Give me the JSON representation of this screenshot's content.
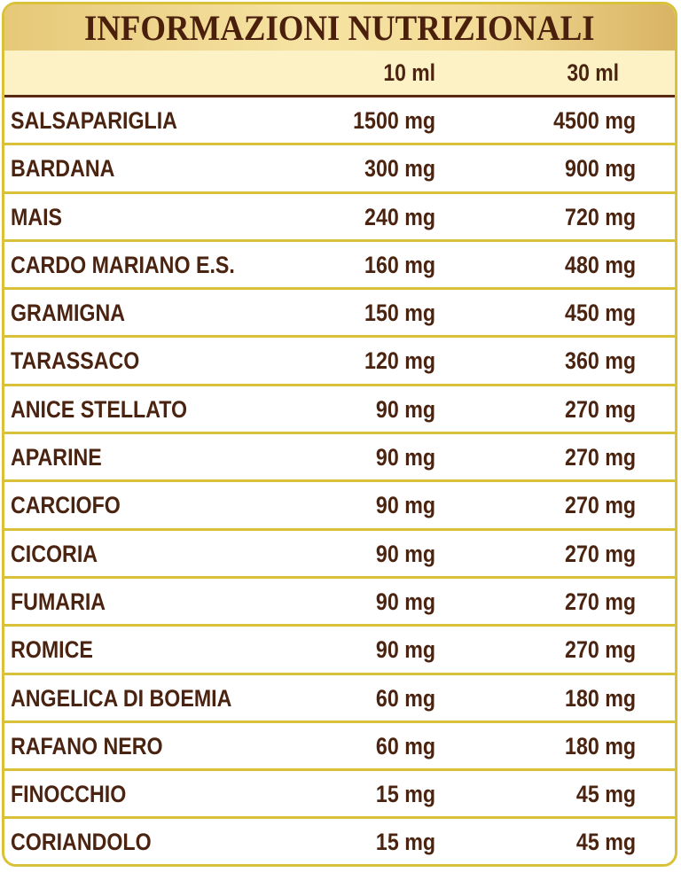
{
  "title": "INFORMAZIONI NUTRIZIONALI",
  "columns": [
    "10 ml",
    "30 ml"
  ],
  "rows": [
    {
      "name": "SALSAPARIGLIA",
      "v10": "1500 mg",
      "v30": "4500 mg"
    },
    {
      "name": "BARDANA",
      "v10": "300 mg",
      "v30": "900 mg"
    },
    {
      "name": "MAIS",
      "v10": "240 mg",
      "v30": "720 mg"
    },
    {
      "name": "CARDO MARIANO E.S.",
      "v10": "160 mg",
      "v30": "480 mg"
    },
    {
      "name": "GRAMIGNA",
      "v10": "150 mg",
      "v30": "450 mg"
    },
    {
      "name": "TARASSACO",
      "v10": "120 mg",
      "v30": "360 mg"
    },
    {
      "name": "ANICE STELLATO",
      "v10": "90 mg",
      "v30": "270 mg"
    },
    {
      "name": "APARINE",
      "v10": "90 mg",
      "v30": "270 mg"
    },
    {
      "name": "CARCIOFO",
      "v10": "90 mg",
      "v30": "270 mg"
    },
    {
      "name": "CICORIA",
      "v10": "90 mg",
      "v30": "270 mg"
    },
    {
      "name": "FUMARIA",
      "v10": "90 mg",
      "v30": "270 mg"
    },
    {
      "name": "ROMICE",
      "v10": "90 mg",
      "v30": "270 mg"
    },
    {
      "name": "ANGELICA DI BOEMIA",
      "v10": "60 mg",
      "v30": "180 mg"
    },
    {
      "name": "RAFANO NERO",
      "v10": "60 mg",
      "v30": "180 mg"
    },
    {
      "name": "FINOCCHIO",
      "v10": "15 mg",
      "v30": "45 mg"
    },
    {
      "name": "CORIANDOLO",
      "v10": "15 mg",
      "v30": "45 mg"
    }
  ],
  "colors": {
    "text": "#4a2410",
    "border": "#d9c23a",
    "header_bg": "#fdf2c6",
    "rule": "#5a2a12"
  }
}
